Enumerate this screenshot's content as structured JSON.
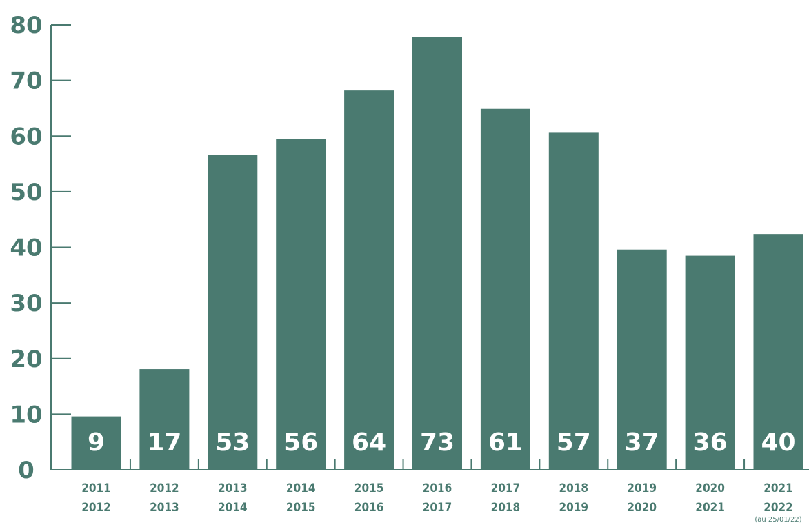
{
  "chart_data": {
    "type": "bar",
    "categories": [
      [
        "2011",
        "2012"
      ],
      [
        "2012",
        "2013"
      ],
      [
        "2013",
        "2014"
      ],
      [
        "2014",
        "2015"
      ],
      [
        "2015",
        "2016"
      ],
      [
        "2016",
        "2017"
      ],
      [
        "2017",
        "2018"
      ],
      [
        "2018",
        "2019"
      ],
      [
        "2019",
        "2020"
      ],
      [
        "2020",
        "2021"
      ],
      [
        "2021",
        "2022"
      ]
    ],
    "category_notes": [
      "",
      "",
      "",
      "",
      "",
      "",
      "",
      "",
      "",
      "",
      "(au 25/01/22)"
    ],
    "values": [
      9,
      17,
      53,
      56,
      64,
      73,
      61,
      57,
      37,
      36,
      40
    ],
    "bar_heights_on_axis": [
      9.6,
      18.1,
      56.6,
      59.5,
      68.2,
      77.8,
      64.9,
      60.6,
      39.6,
      38.5,
      42.4
    ],
    "ylim": [
      0,
      80
    ],
    "yticks": [
      0,
      10,
      20,
      30,
      40,
      50,
      60,
      70,
      80
    ],
    "title": "",
    "xlabel": "",
    "ylabel": "",
    "grid": false,
    "colors": {
      "bar": "#4a7a70",
      "axis": "#4a7a70",
      "value_label": "#ffffff"
    }
  }
}
